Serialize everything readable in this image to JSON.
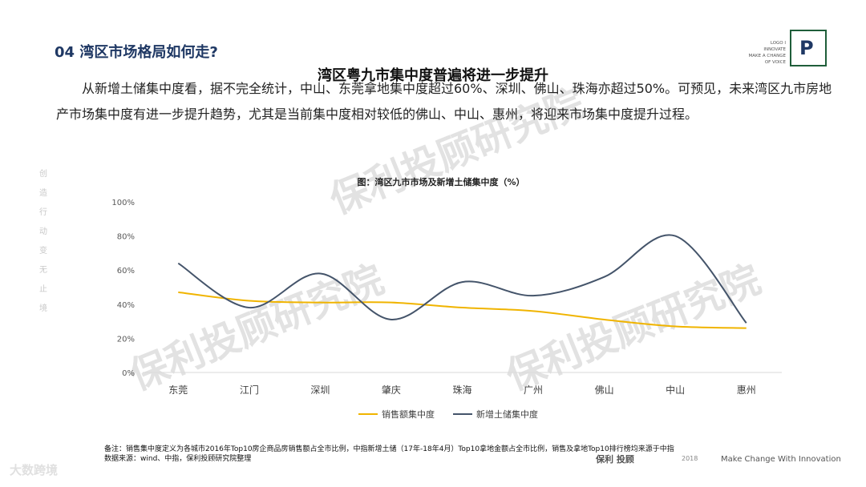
{
  "page": {
    "section_title": "04 湾区市场格局如何走?",
    "headline": "湾区粤九市集中度普遍将进一步提升",
    "body_text": "从新增土储集中度看，据不完全统计，中山、东莞拿地集中度超过60%、深圳、佛山、珠海亦超过50%。可预见，未来湾区九市房地产市场集中度有进一步提升趋势，尤其是当前集中度相对较低的佛山、中山、惠州，将迎来市场集中度提升过程。",
    "side_text": [
      "创",
      "造",
      "行",
      "动",
      "变",
      "无",
      "止",
      "境"
    ],
    "watermark": "保利投顾研究院",
    "notes_line1": "备注：销售集中度定义为各城市2016年Top10房企商品房销售额占全市比例，中指新增土储（17年-18年4月）Top10拿地金额占全市比例，销售及拿地Top10排行榜均来源于中指",
    "notes_line2": "数据来源：wind、中指，保利投顾研究院整理",
    "footer_brand": "保利 投顾",
    "footer_year": "2018",
    "footer_slogan": "Make Change With Innovation",
    "logo_letter": "P",
    "logo_lines": [
      "LOGO I",
      "INNOVATE",
      "MAKE A CHANGE",
      "OF VOICE"
    ],
    "corner_mark": "大数跨境",
    "colors": {
      "accent": "#1f3864",
      "series_sales": "#f0b400",
      "series_land": "#44546a"
    }
  },
  "chart_data": {
    "type": "line",
    "title": "图：湾区九市市场及新增土储集中度（%）",
    "categories": [
      "东莞",
      "江门",
      "深圳",
      "肇庆",
      "珠海",
      "广州",
      "佛山",
      "中山",
      "惠州"
    ],
    "y_ticks": [
      "0%",
      "20%",
      "40%",
      "60%",
      "80%",
      "100%"
    ],
    "ylim": [
      0,
      100
    ],
    "series": [
      {
        "name": "销售额集中度",
        "values": [
          47,
          42,
          41,
          41,
          38,
          36,
          31,
          27,
          26
        ]
      },
      {
        "name": "新增土储集中度",
        "values": [
          64,
          38,
          58,
          31,
          53,
          45,
          56,
          80,
          29
        ]
      }
    ],
    "legend": "bottom",
    "grid": false
  }
}
